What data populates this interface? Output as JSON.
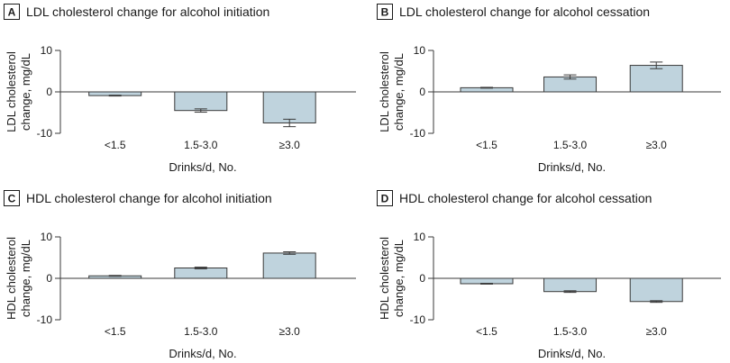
{
  "colors": {
    "bar_fill": "#bfd3dd",
    "bar_stroke": "#3a3a3a",
    "axis": "#3a3a3a",
    "text": "#1a1a1a"
  },
  "chart_data": [
    {
      "type": "bar",
      "letter": "A",
      "title": "LDL cholesterol change for alcohol initiation",
      "xlabel": "Drinks/d, No.",
      "ylabel": "LDL cholesterol change, mg/dL",
      "categories": [
        "<1.5",
        "1.5-3.0",
        "≥3.0"
      ],
      "values": [
        -0.9,
        -4.5,
        -7.5
      ],
      "error_low": [
        -1.0,
        -4.9,
        -8.4
      ],
      "error_high": [
        -0.8,
        -4.1,
        -6.6
      ],
      "ylim": [
        -10,
        10
      ],
      "yticks": [
        10,
        0,
        -10
      ],
      "grid": false
    },
    {
      "type": "bar",
      "letter": "B",
      "title": "LDL cholesterol change for alcohol cessation",
      "xlabel": "Drinks/d, No.",
      "ylabel": "LDL cholesterol change, mg/dL",
      "categories": [
        "<1.5",
        "1.5-3.0",
        "≥3.0"
      ],
      "values": [
        1.0,
        3.6,
        6.4
      ],
      "error_low": [
        0.9,
        3.1,
        5.6
      ],
      "error_high": [
        1.1,
        4.1,
        7.2
      ],
      "ylim": [
        -10,
        10
      ],
      "yticks": [
        10,
        0,
        -10
      ],
      "grid": false
    },
    {
      "type": "bar",
      "letter": "C",
      "title": "HDL cholesterol change for alcohol initiation",
      "xlabel": "Drinks/d, No.",
      "ylabel": "HDL cholesterol change, mg/dL",
      "categories": [
        "<1.5",
        "1.5-3.0",
        "≥3.0"
      ],
      "values": [
        0.6,
        2.5,
        6.1
      ],
      "error_low": [
        0.5,
        2.3,
        5.8
      ],
      "error_high": [
        0.7,
        2.7,
        6.4
      ],
      "ylim": [
        -10,
        10
      ],
      "yticks": [
        10,
        0,
        -10
      ],
      "grid": false
    },
    {
      "type": "bar",
      "letter": "D",
      "title": "HDL cholesterol change for alcohol cessation",
      "xlabel": "Drinks/d, No.",
      "ylabel": "HDL cholesterol change, mg/dL",
      "categories": [
        "<1.5",
        "1.5-3.0",
        "≥3.0"
      ],
      "values": [
        -1.3,
        -3.2,
        -5.6
      ],
      "error_low": [
        -1.4,
        -3.4,
        -5.8
      ],
      "error_high": [
        -1.2,
        -3.0,
        -5.4
      ],
      "ylim": [
        -10,
        10
      ],
      "yticks": [
        10,
        0,
        -10
      ],
      "grid": false
    }
  ]
}
